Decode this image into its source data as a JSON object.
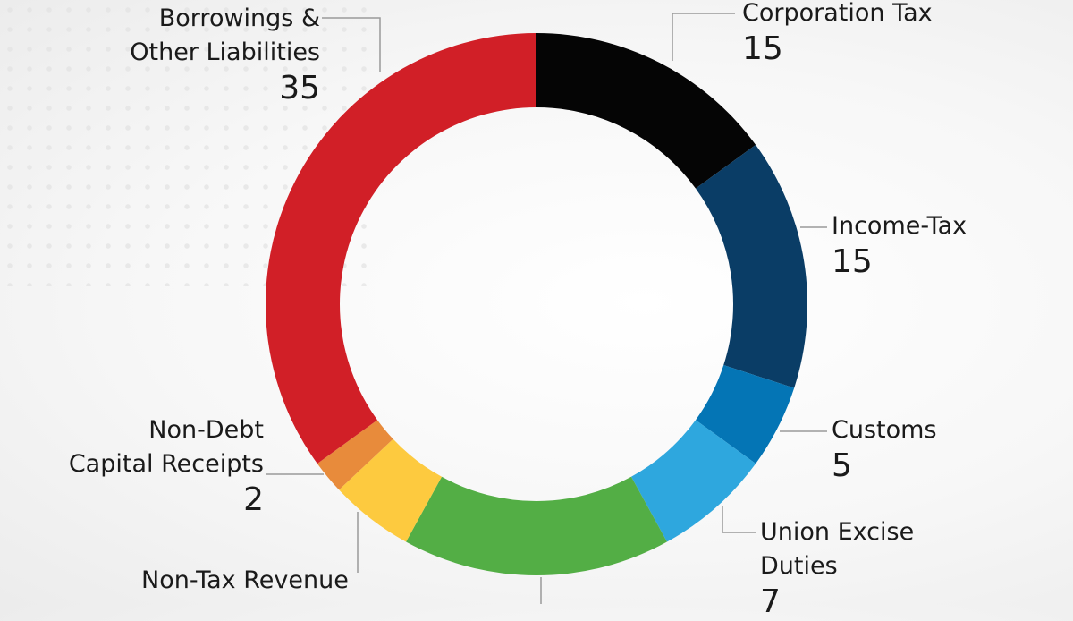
{
  "chart_data": {
    "type": "pie",
    "variant": "donut",
    "start": "top, clockwise",
    "slices": [
      {
        "name": "Corporation Tax",
        "value": 15,
        "value_label": "15",
        "color": "#050505"
      },
      {
        "name": "Income-Tax",
        "value": 15,
        "value_label": "15",
        "color": "#0a3d66"
      },
      {
        "name": "Customs",
        "value": 5,
        "value_label": "5",
        "color": "#0475b5"
      },
      {
        "name": "Union Excise Duties",
        "name_lines": [
          "Union Excise",
          "Duties"
        ],
        "value": 7,
        "value_label": "7",
        "color": "#2ea7de"
      },
      {
        "name": "",
        "value": 16,
        "color": "#53ae45"
      },
      {
        "name": "Non-Tax Revenue",
        "value": 5,
        "color": "#fdca3f"
      },
      {
        "name": "Non-Debt Capital Receipts",
        "name_lines": [
          "Non-Debt",
          "Capital Receipts"
        ],
        "value": 2,
        "value_label": "2",
        "color": "#e88b3b"
      },
      {
        "name": "Borrowings & Other Liabilities",
        "name_lines": [
          "Borrowings &",
          "Other Liabilities"
        ],
        "value": 35,
        "value_label": "35",
        "color": "#d11f27"
      }
    ]
  }
}
